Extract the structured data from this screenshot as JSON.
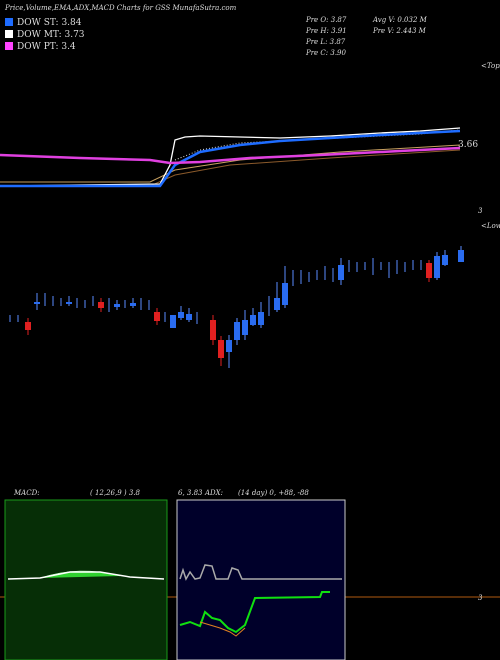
{
  "header": {
    "title": "Price,Volume,EMA,ADX,MACD Charts for GSS MunafaSutra.com"
  },
  "legend": {
    "items": [
      {
        "label": "DOW ST: 3.84",
        "color": "#1e6cff"
      },
      {
        "label": "DOW MT: 3.73",
        "color": "#ffffff"
      },
      {
        "label": "DOW PT: 3.4",
        "color": "#ff44ff"
      }
    ]
  },
  "stats": {
    "left": [
      "Pre  O: 3.87",
      "Pre  H: 3.91",
      "Pre  L: 3.87",
      "Pre  C: 3.90"
    ],
    "right": [
      "Avg  V: 0.032  M",
      "Pre   V: 2.443  M"
    ]
  },
  "price_panel": {
    "tops": "<Tops",
    "level": "3.66",
    "bottom": "3"
  },
  "candle_panel": {
    "lows": "<Lows"
  },
  "macd": {
    "title": "MACD:",
    "params": "( 12,26,9 ) 3.8",
    "values": "6, 3.83"
  },
  "adx": {
    "title": "ADX:",
    "params": "(14  day) 0, +88, -88"
  },
  "reference": {
    "label": "3"
  }
}
